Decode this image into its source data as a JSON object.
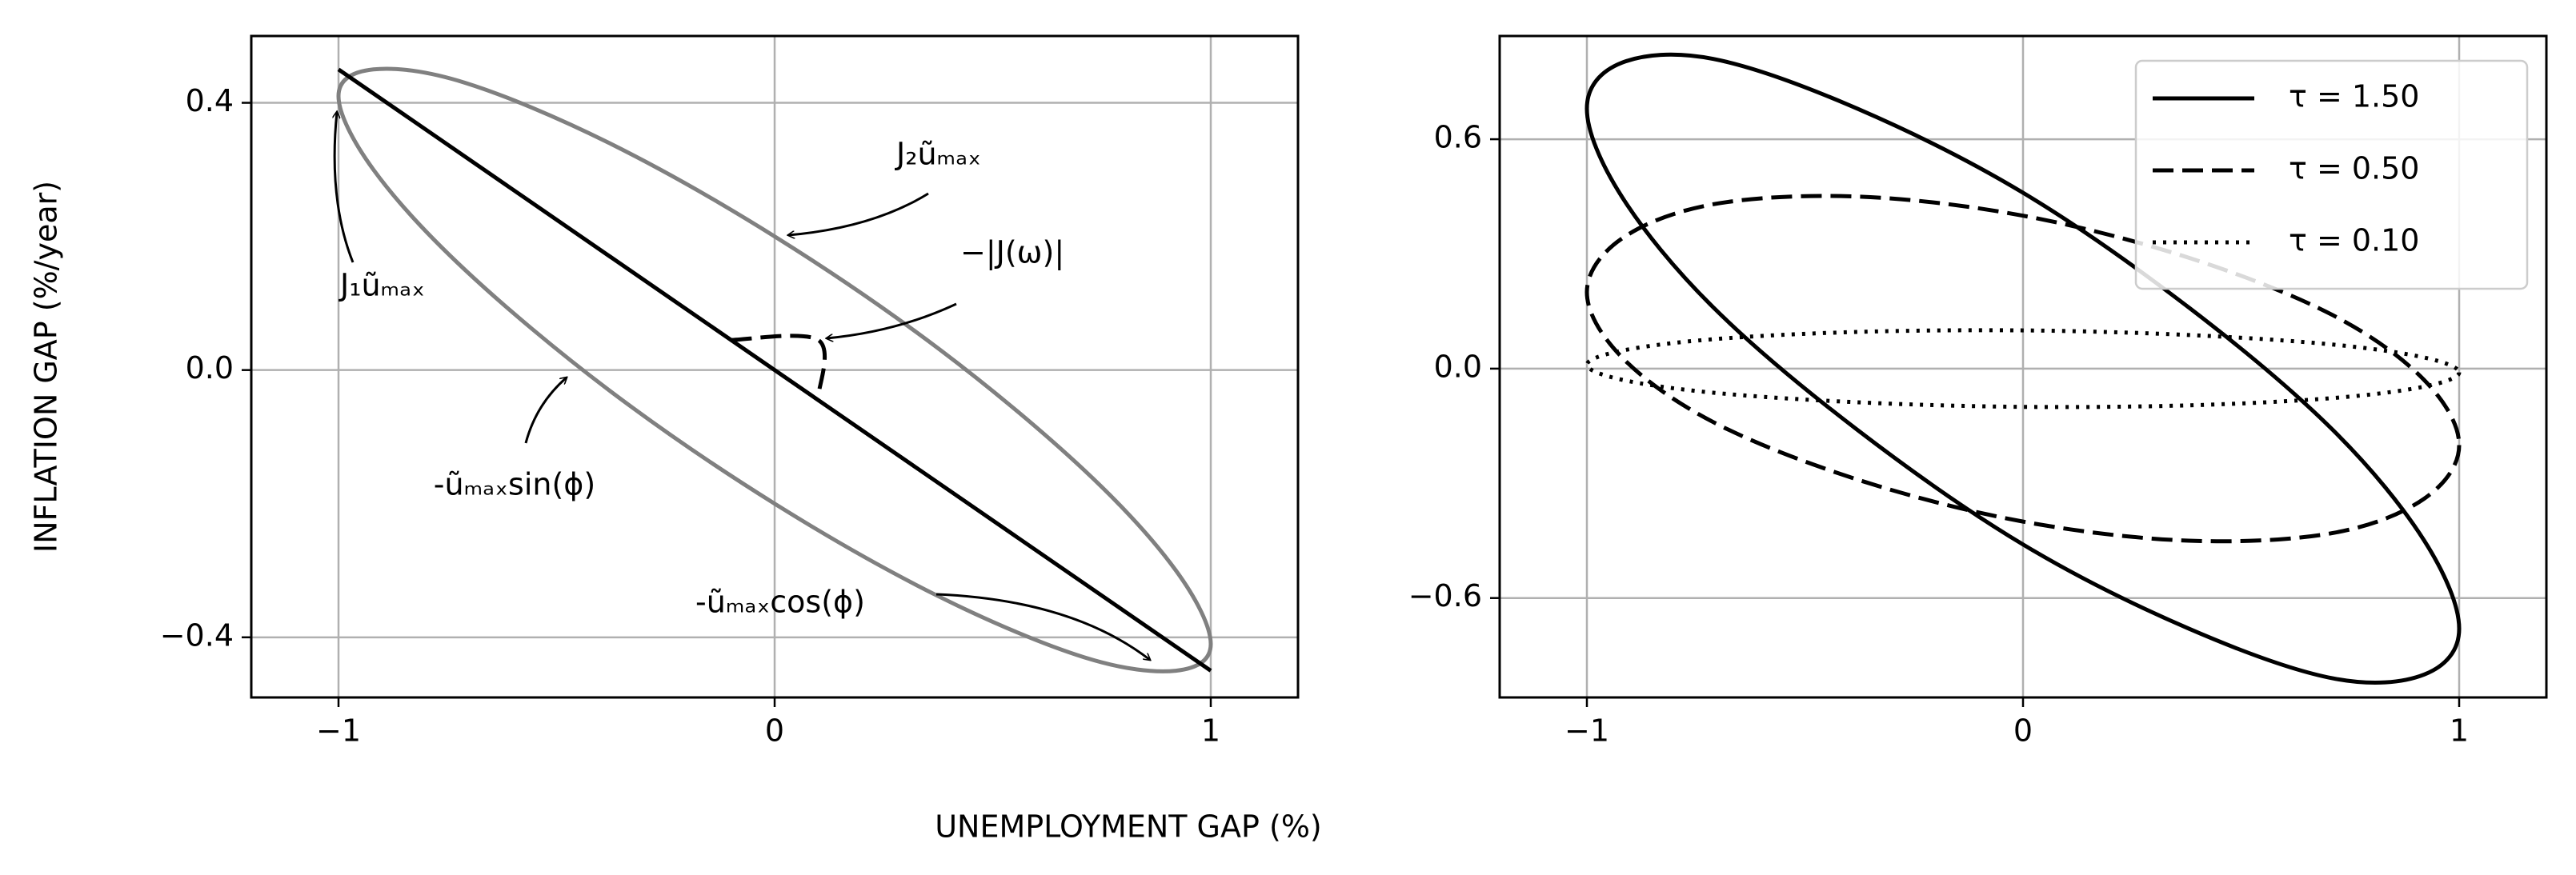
{
  "xlabel": "UNEMPLOYMENT GAP (%)",
  "chart_data": [
    {
      "type": "line",
      "ylabel": "INFLATION GAP (%/year)",
      "xlim": [
        -1.2,
        1.2
      ],
      "ylim": [
        -0.49,
        0.5
      ],
      "xticks": [
        {
          "value": -1,
          "label": "−1"
        },
        0,
        1
      ],
      "yticks": [
        {
          "value": -0.4,
          "label": "−0.4"
        },
        {
          "value": 0,
          "label": "0.0"
        },
        0.4
      ],
      "grid": true,
      "series": [
        {
          "color": "#808080",
          "dash": "solid",
          "x": [
            1,
            0.92,
            0.71,
            0.38,
            0,
            -0.38,
            -0.71,
            -0.92,
            -1,
            -0.92,
            -0.71,
            -0.38,
            0,
            0.38,
            0.71,
            0.92,
            1
          ],
          "values": [
            -0.41,
            -0.45,
            -0.43,
            -0.34,
            -0.2,
            -0.03,
            0.15,
            0.3,
            0.41,
            0.45,
            0.43,
            0.34,
            0.2,
            0.03,
            -0.15,
            -0.3,
            -0.41
          ]
        },
        {
          "color": "#000000",
          "dash": "solid",
          "x": [
            -1,
            1
          ],
          "values": [
            0.45,
            -0.45
          ]
        },
        {
          "color": "#000000",
          "dash": "dashed",
          "x": [
            -0.1,
            0.1,
            0.1
          ],
          "values": [
            0.045,
            0.045,
            -0.04
          ]
        }
      ],
      "annotations": [
        "J₂ũₘₐₓ",
        "J₁ũₘₐₓ",
        "−|J(ω)|",
        "-ũₘₐₓsin(ϕ)",
        "-ũₘₐₓcos(ϕ)"
      ]
    },
    {
      "type": "line",
      "xlim": [
        -1.2,
        1.2
      ],
      "ylim": [
        -0.86,
        0.87
      ],
      "xticks": [
        {
          "value": -1,
          "label": "−1"
        },
        0,
        1
      ],
      "yticks": [
        {
          "value": -0.6,
          "label": "−0.6"
        },
        {
          "value": 0,
          "label": "0.0"
        },
        0.6
      ],
      "grid": true,
      "legend": "upper right",
      "series": [
        {
          "name": "τ = 1.50",
          "color": "#000000",
          "dash": "solid",
          "x": [
            1,
            0.92,
            0.71,
            0.38,
            0,
            -0.38,
            -0.71,
            -0.92,
            -1,
            -0.92,
            -0.71,
            -0.38,
            0,
            0.38,
            0.71,
            0.92,
            1
          ],
          "values": [
            -0.68,
            -0.8,
            -0.81,
            -0.68,
            -0.46,
            -0.16,
            0.16,
            0.45,
            0.68,
            0.8,
            0.81,
            0.68,
            0.46,
            0.16,
            -0.16,
            -0.45,
            -0.68
          ]
        },
        {
          "name": "τ = 0.50",
          "color": "#000000",
          "dash": "dashed",
          "x": [
            1,
            0.92,
            0.71,
            0.38,
            0,
            -0.38,
            -0.71,
            -0.92,
            -1,
            -0.92,
            -0.71,
            -0.38,
            0,
            0.38,
            0.71,
            0.92,
            1
          ],
          "values": [
            -0.2,
            -0.34,
            -0.43,
            -0.45,
            -0.4,
            -0.29,
            -0.14,
            0.03,
            0.2,
            0.34,
            0.43,
            0.45,
            0.4,
            0.29,
            0.14,
            -0.03,
            -0.2
          ]
        },
        {
          "name": "τ = 0.10",
          "color": "#000000",
          "dash": "dotted",
          "x": [
            1,
            0.92,
            0.71,
            0.38,
            0,
            -0.38,
            -0.71,
            -0.92,
            -1,
            -0.92,
            -0.71,
            -0.38,
            0,
            0.38,
            0.71,
            0.92,
            1
          ],
          "values": [
            -0.01,
            -0.047,
            -0.077,
            -0.096,
            -0.1,
            -0.088,
            -0.063,
            -0.029,
            0.01,
            0.047,
            0.077,
            0.096,
            0.1,
            0.088,
            0.063,
            0.029,
            -0.01
          ]
        }
      ]
    }
  ]
}
